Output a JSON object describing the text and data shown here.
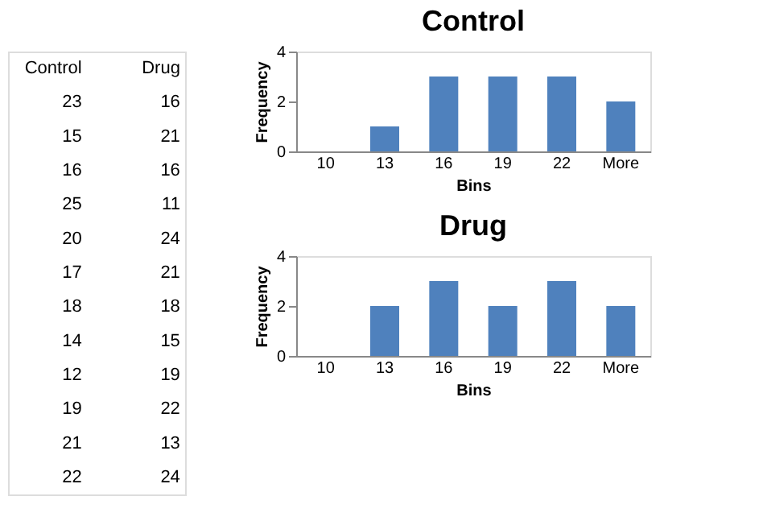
{
  "chart_data": [
    {
      "type": "other",
      "annotations": [
        "Control",
        "Drug",
        "23",
        "16",
        "15",
        "21",
        "16",
        "16",
        "25",
        "11",
        "20",
        "24",
        "17",
        "21",
        "18",
        "18",
        "14",
        "15",
        "12",
        "19",
        "19",
        "22",
        "21",
        "13",
        "22",
        "24"
      ]
    },
    {
      "type": "bar",
      "title": "Control",
      "xlabel": "Bins",
      "ylabel": "Frequency",
      "categories": [
        "10",
        "13",
        "16",
        "19",
        "22",
        "More"
      ],
      "values": [
        0,
        1,
        3,
        3,
        3,
        2
      ],
      "color": "#4f81bd",
      "ylim": [
        0,
        4
      ],
      "yticks": [
        0,
        2,
        4
      ],
      "grid": false
    },
    {
      "type": "bar",
      "title": "Drug",
      "xlabel": "Bins",
      "ylabel": "Frequency",
      "categories": [
        "10",
        "13",
        "16",
        "19",
        "22",
        "More"
      ],
      "values": [
        0,
        2,
        3,
        2,
        3,
        2
      ],
      "color": "#4f81bd",
      "ylim": [
        0,
        4
      ],
      "yticks": [
        0,
        2,
        4
      ],
      "grid": false
    }
  ]
}
